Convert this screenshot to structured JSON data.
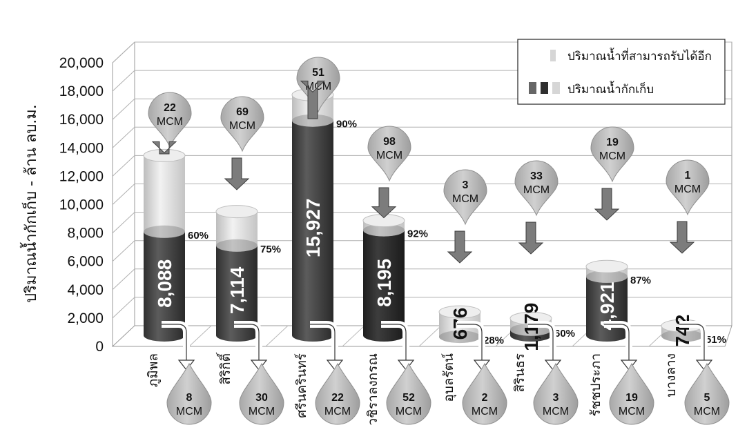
{
  "chart_data": {
    "type": "bar",
    "ylabel": "ปริมาณน้ำกักเก็บ - ล้าน ลบ.ม.",
    "ylim": [
      0,
      20000
    ],
    "yticks": [
      "0",
      "2,000",
      "4,000",
      "6,000",
      "8,000",
      "10,000",
      "12,000",
      "14,000",
      "16,000",
      "18,000",
      "20,000"
    ],
    "legend": {
      "position": "top-right",
      "entries": [
        "ปริมาณน้ำที่สามารถรับได้อีก",
        "ปริมาณน้ำกักเก็บ"
      ]
    },
    "categories": [
      "ภูมิพล",
      "สิริกิติ์",
      "ศรีนครินทร์",
      "วชิราลงกรณ",
      "อุบลรัตน์",
      "สิรินธร",
      "รัชชประภา",
      "บางลาง"
    ],
    "series": [
      {
        "name": "ปริมาณน้ำกักเก็บ",
        "values": [
          8088,
          7114,
          15927,
          8195,
          676,
          1179,
          4921,
          742
        ],
        "labels": [
          "8,088",
          "7,114",
          "15,927",
          "8,195",
          "676",
          "1,179",
          "4,921",
          "742"
        ]
      },
      {
        "name": "ปริมาณน้ำที่สามารถรับได้อีก",
        "values": [
          5374,
          2396,
          1818,
          682,
          1754,
          800,
          710,
          710
        ]
      }
    ],
    "percent_labels": [
      "60%",
      "75%",
      "90%",
      "92%",
      "28%",
      "60%",
      "87%",
      "51%"
    ],
    "inflow": [
      "22",
      "69",
      "51",
      "98",
      "3",
      "33",
      "19",
      "1"
    ],
    "outflow": [
      "8",
      "30",
      "22",
      "52",
      "2",
      "3",
      "19",
      "5"
    ],
    "unit": "MCM"
  },
  "colors": {
    "stored": "#555555",
    "stored_dark": "#3a3a3a",
    "capacity": "#e2e2e2",
    "bubble": "#bcbcbc",
    "arrow": "#808080"
  }
}
